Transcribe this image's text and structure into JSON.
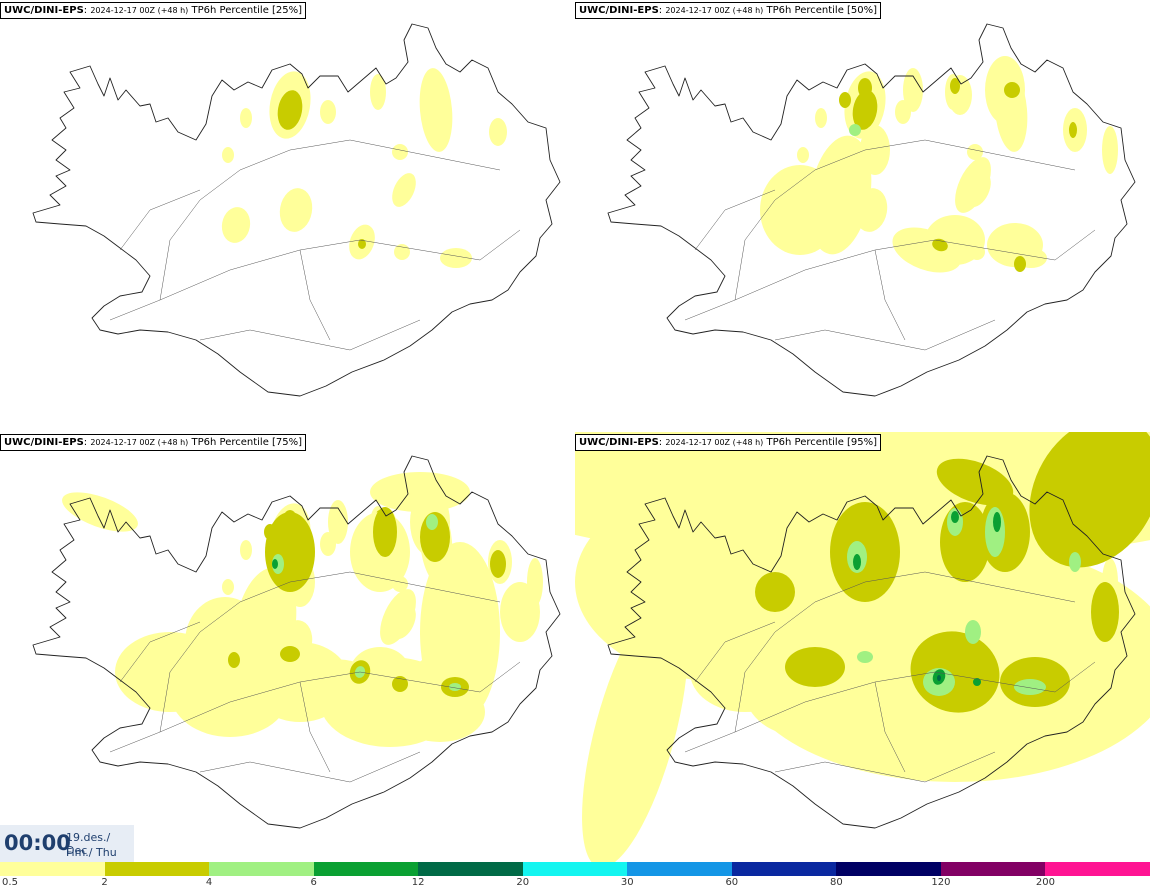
{
  "panels": [
    {
      "model": "UWC/DINI-EPS",
      "run": "2024-12-17 00Z (+48 h)",
      "product": "TP6h Percentile [25%]",
      "level": 1
    },
    {
      "model": "UWC/DINI-EPS",
      "run": "2024-12-17 00Z (+48 h)",
      "product": "TP6h Percentile [50%]",
      "level": 2
    },
    {
      "model": "UWC/DINI-EPS",
      "run": "2024-12-17 00Z (+48 h)",
      "product": "TP6h Percentile [75%]",
      "level": 3
    },
    {
      "model": "UWC/DINI-EPS",
      "run": "2024-12-17 00Z (+48 h)",
      "product": "TP6h Percentile [95%]",
      "level": 4
    }
  ],
  "clock": {
    "time": "00:00",
    "date": "19.des./ Dec",
    "day": "Fim./ Thu"
  },
  "legend": {
    "labels": [
      "0.5",
      "2",
      "4",
      "6",
      "12",
      "20",
      "30",
      "60",
      "80",
      "120",
      "200"
    ],
    "colors": [
      "#ffff9a",
      "#c8cc00",
      "#a0f082",
      "#0aa032",
      "#006a46",
      "#14f5f0",
      "#1496e6",
      "#0a28a0",
      "#000064",
      "#820064",
      "#ff1493",
      "#ff0000"
    ]
  },
  "colors": {
    "light": "#ffff9a",
    "olive": "#c8cc00",
    "lightgreen": "#a0f082",
    "green": "#0aa032",
    "darkgreen": "#006a46"
  }
}
